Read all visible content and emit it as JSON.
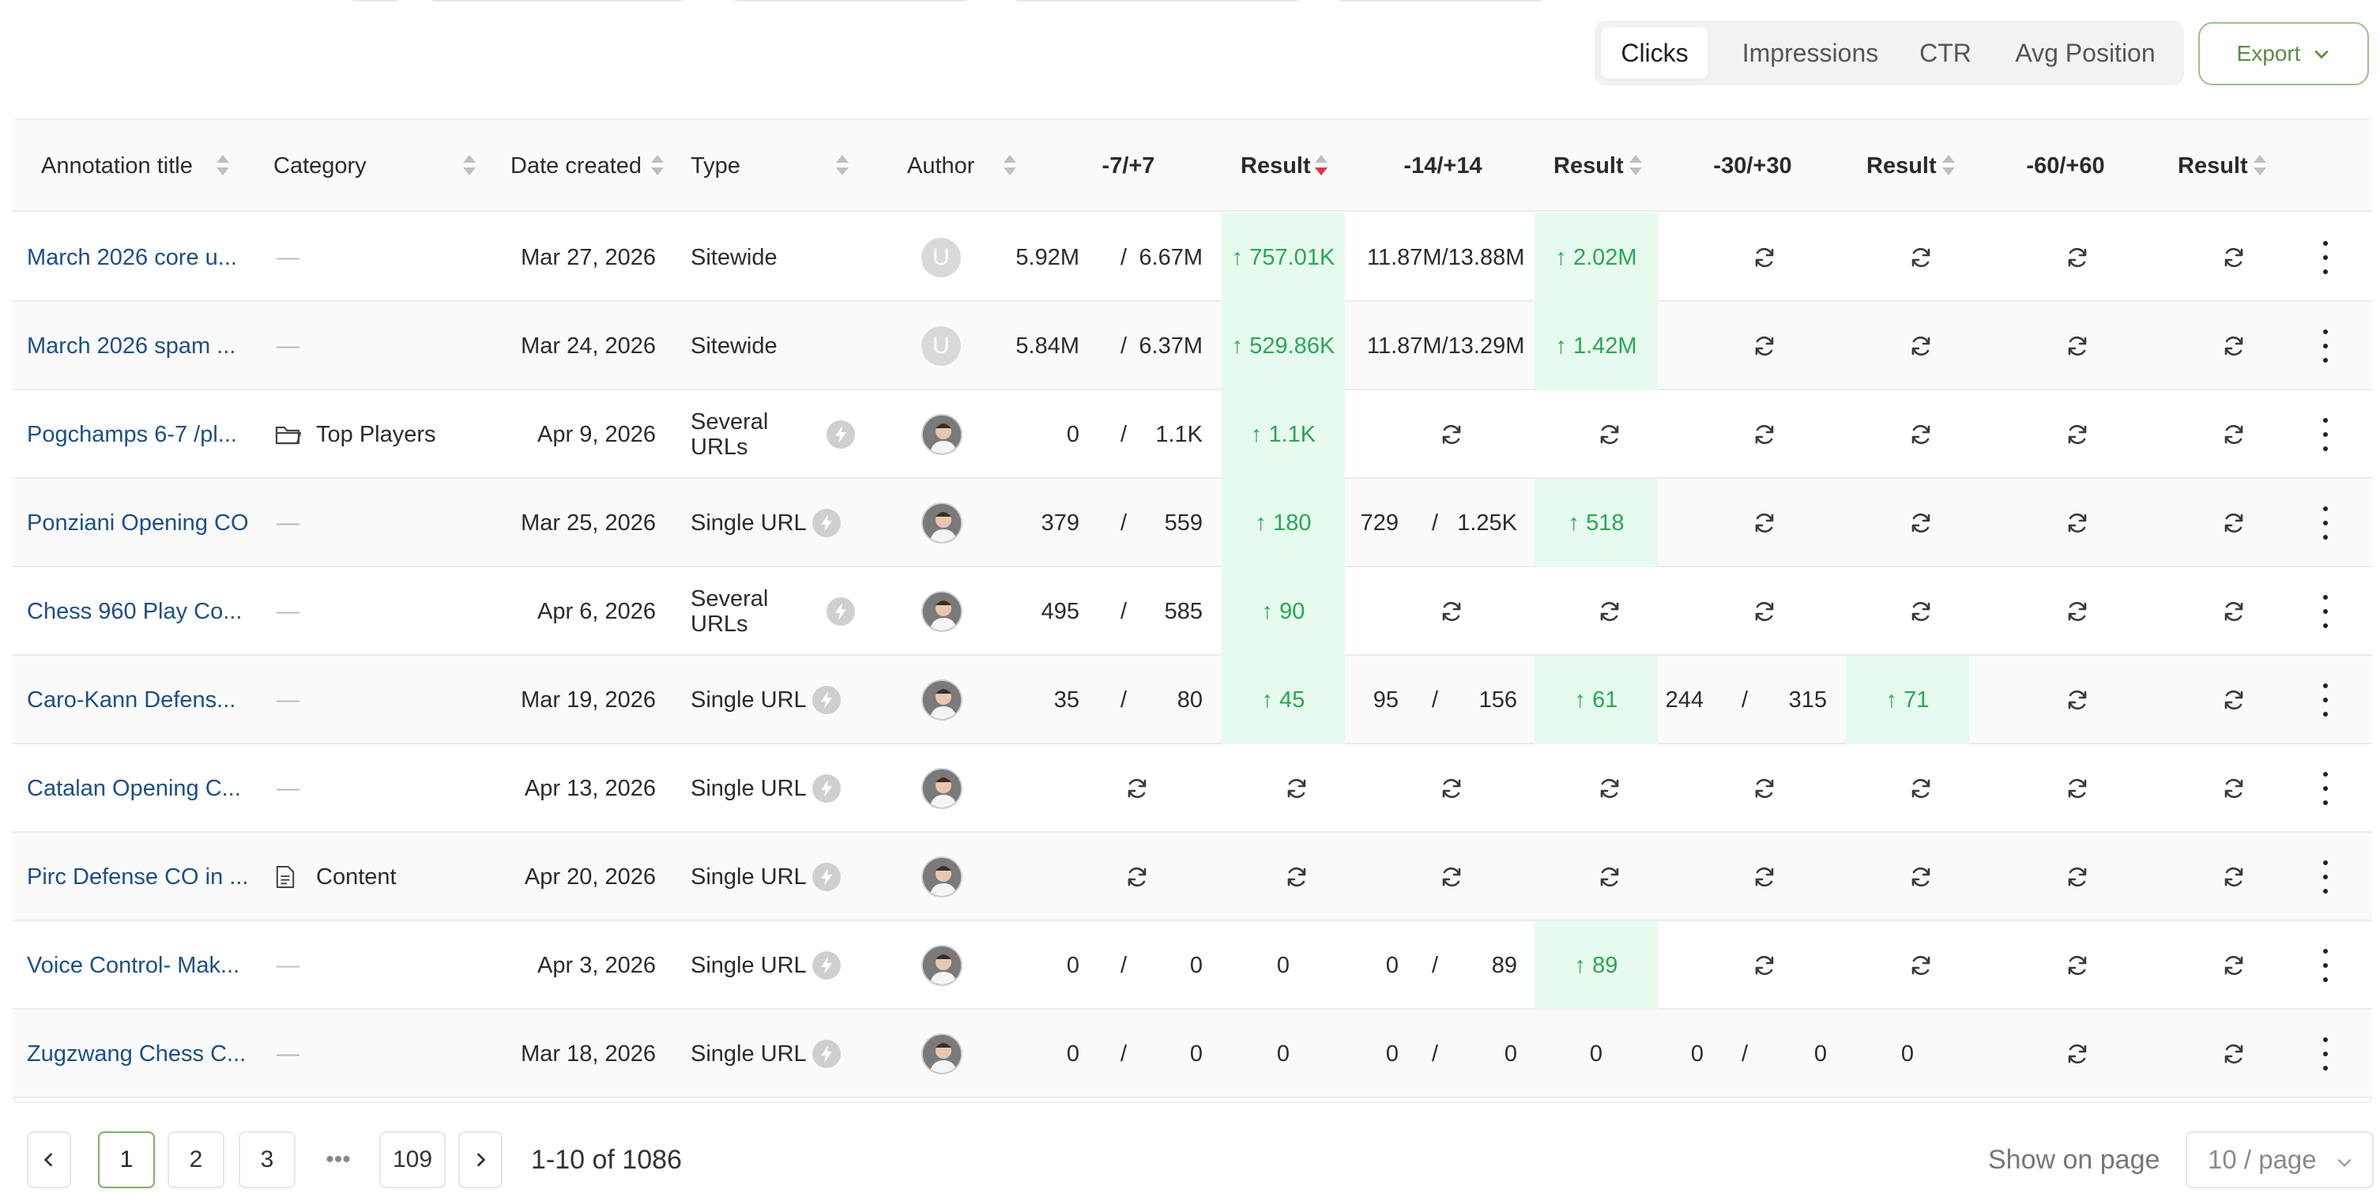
{
  "metric_tabs": [
    "Clicks",
    "Impressions",
    "CTR",
    "Avg Position"
  ],
  "active_metric": "Clicks",
  "export_label": "Export",
  "columns": {
    "title": "Annotation title",
    "category": "Category",
    "date": "Date created",
    "type": "Type",
    "author": "Author",
    "w7": "-7/+7",
    "r7": "Result",
    "w14": "-14/+14",
    "r14": "Result",
    "w30": "-30/+30",
    "r30": "Result",
    "w60": "-60/+60",
    "r60": "Result"
  },
  "rows": [
    {
      "title": "March 2026 core u...",
      "category": "—",
      "date": "Mar 27, 2026",
      "type": "Sitewide",
      "author": "U",
      "w7_before": "5.92M",
      "w7_sep": "/",
      "w7_after": "6.67M",
      "r7": "↑ 757.01K",
      "w14": "11.87M/13.88M",
      "r14": "↑ 2.02M"
    },
    {
      "title": "March 2026 spam ...",
      "category": "—",
      "date": "Mar 24, 2026",
      "type": "Sitewide",
      "author": "U",
      "w7_before": "5.84M",
      "w7_sep": "/",
      "w7_after": "6.37M",
      "r7": "↑ 529.86K",
      "w14": "11.87M/13.29M",
      "r14": "↑ 1.42M"
    },
    {
      "title": "Pogchamps 6-7 /pl...",
      "category": "Top Players",
      "date": "Apr 9, 2026",
      "type_line1": "Several",
      "type_line2": "URLs",
      "w7_before": "0",
      "w7_sep": "/",
      "w7_after": "1.1K",
      "r7": "↑ 1.1K"
    },
    {
      "title": "Ponziani Opening CO",
      "category": "—",
      "date": "Mar 25, 2026",
      "type": "Single URL",
      "w7_before": "379",
      "w7_sep": "/",
      "w7_after": "559",
      "r7": "↑ 180",
      "w14_before": "729",
      "w14_sep": "/",
      "w14_after": "1.25K",
      "r14": "↑ 518"
    },
    {
      "title": "Chess 960 Play Co...",
      "category": "—",
      "date": "Apr 6, 2026",
      "type_line1": "Several",
      "type_line2": "URLs",
      "w7_before": "495",
      "w7_sep": "/",
      "w7_after": "585",
      "r7": "↑ 90"
    },
    {
      "title": "Caro-Kann Defens...",
      "category": "—",
      "date": "Mar 19, 2026",
      "type": "Single URL",
      "w7_before": "35",
      "w7_sep": "/",
      "w7_after": "80",
      "r7": "↑ 45",
      "w14_before": "95",
      "w14_sep": "/",
      "w14_after": "156",
      "r14": "↑ 61",
      "w30_before": "244",
      "w30_sep": "/",
      "w30_after": "315",
      "r30": "↑ 71"
    },
    {
      "title": "Catalan Opening C...",
      "category": "—",
      "date": "Apr 13, 2026",
      "type": "Single URL"
    },
    {
      "title": "Pirc Defense CO in ...",
      "category": "Content",
      "date": "Apr 20, 2026",
      "type": "Single URL"
    },
    {
      "title": "Voice Control- Mak...",
      "category": "—",
      "date": "Apr 3, 2026",
      "type": "Single URL",
      "w7_before": "0",
      "w7_sep": "/",
      "w7_after": "0",
      "r7": "0",
      "w14_before": "0",
      "w14_sep": "/",
      "w14_after": "89",
      "r14": "↑ 89"
    },
    {
      "title": "Zugzwang Chess C...",
      "category": "—",
      "date": "Mar 18, 2026",
      "type": "Single URL",
      "w7_before": "0",
      "w7_sep": "/",
      "w7_after": "0",
      "r7": "0",
      "w14_before": "0",
      "w14_sep": "/",
      "w14_after": "0",
      "r14": "0",
      "w30_before": "0",
      "w30_sep": "/",
      "w30_after": "0",
      "r30": "0"
    }
  ],
  "pagination": {
    "pages": [
      "1",
      "2",
      "3",
      "109"
    ],
    "ellipsis": "•••",
    "current": "1",
    "summary": "1-10 of 1086",
    "show_label": "Show on page",
    "page_size": "10 / page"
  },
  "colors": {
    "link": "#1b4f86",
    "positive": "#2aa655",
    "positive_bg": "#e6faed",
    "accent": "#7fae66",
    "sort_active": "#e03444"
  }
}
